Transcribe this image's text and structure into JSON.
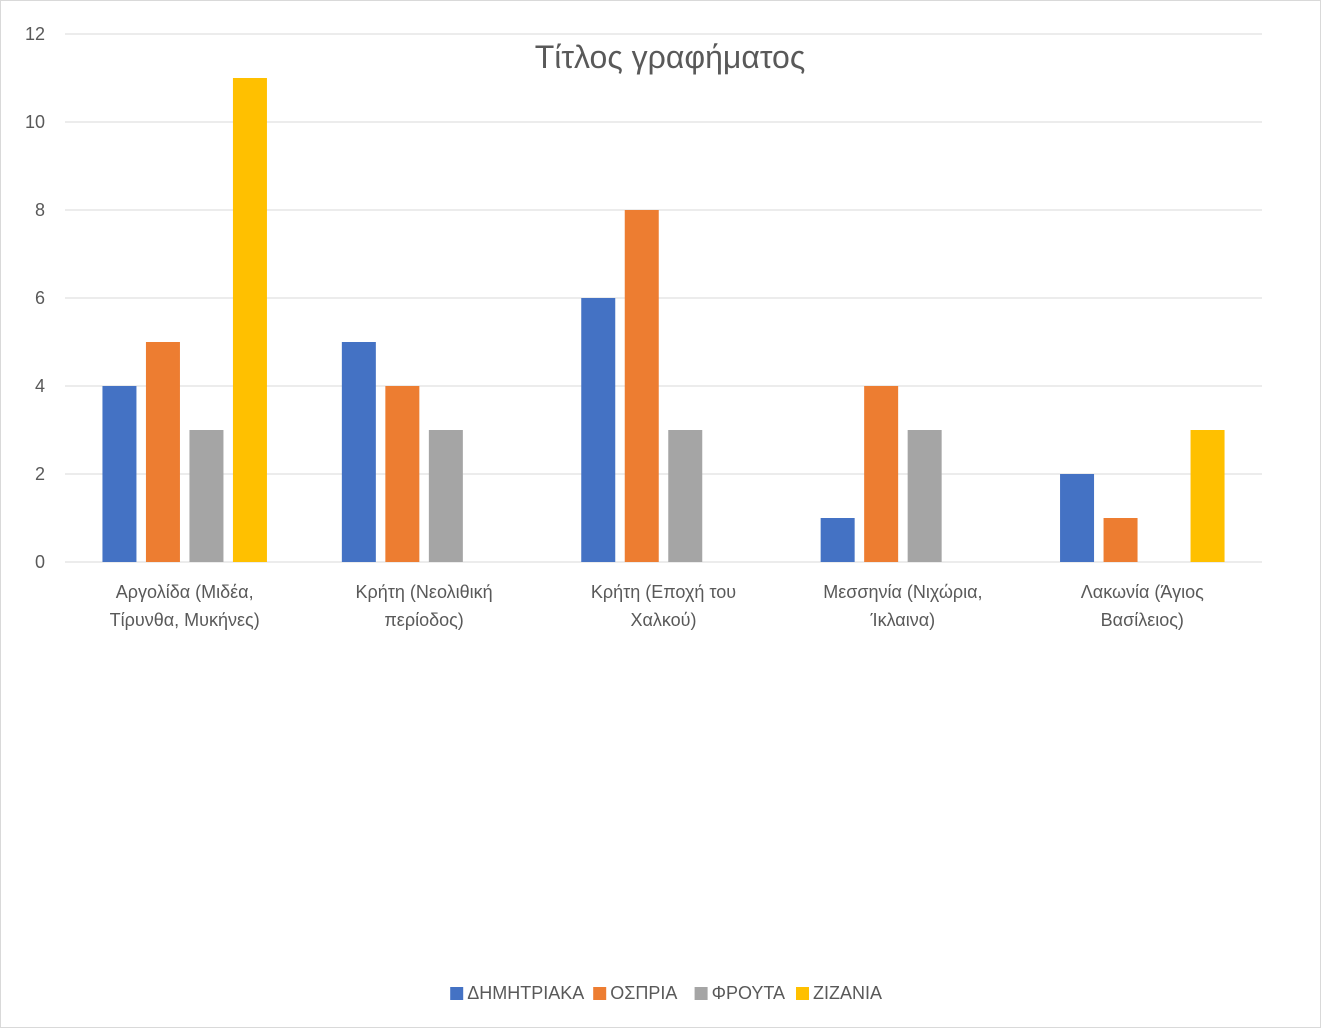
{
  "chart_data": {
    "type": "bar",
    "title": "Τίτλος γραφήματος",
    "xlabel": "",
    "ylabel": "",
    "ylim": [
      0,
      12
    ],
    "yticks": [
      "0",
      "2",
      "4",
      "6",
      "8",
      "10",
      "12"
    ],
    "grid": true,
    "legend_position": "bottom",
    "categories": [
      [
        "Αργολίδα (Μιδέα,",
        "Τίρυνθα, Μυκήνες)"
      ],
      [
        "Κρήτη (Νεολιθική",
        "περίοδος)"
      ],
      [
        "Κρήτη (Εποχή του",
        "Χαλκού)"
      ],
      [
        "Μεσσηνία (Νιχώρια,",
        "Ίκλαινα)"
      ],
      [
        "Λακωνία (Άγιος",
        "Βασίλειος)"
      ]
    ],
    "series": [
      {
        "name": "ΔΗΜΗΤΡΙΑΚΑ",
        "color": "#4472c4",
        "values": [
          4,
          5,
          6,
          1,
          2
        ]
      },
      {
        "name": "ΟΣΠΡΙΑ",
        "color": "#ed7d31",
        "values": [
          5,
          4,
          8,
          4,
          1
        ]
      },
      {
        "name": "ΦΡΟΥΤΑ",
        "color": "#a5a5a5",
        "values": [
          3,
          3,
          3,
          3,
          0
        ]
      },
      {
        "name": "ΖΙΖΑΝΙΑ",
        "color": "#ffc000",
        "values": [
          11,
          0,
          0,
          0,
          3
        ]
      }
    ]
  }
}
